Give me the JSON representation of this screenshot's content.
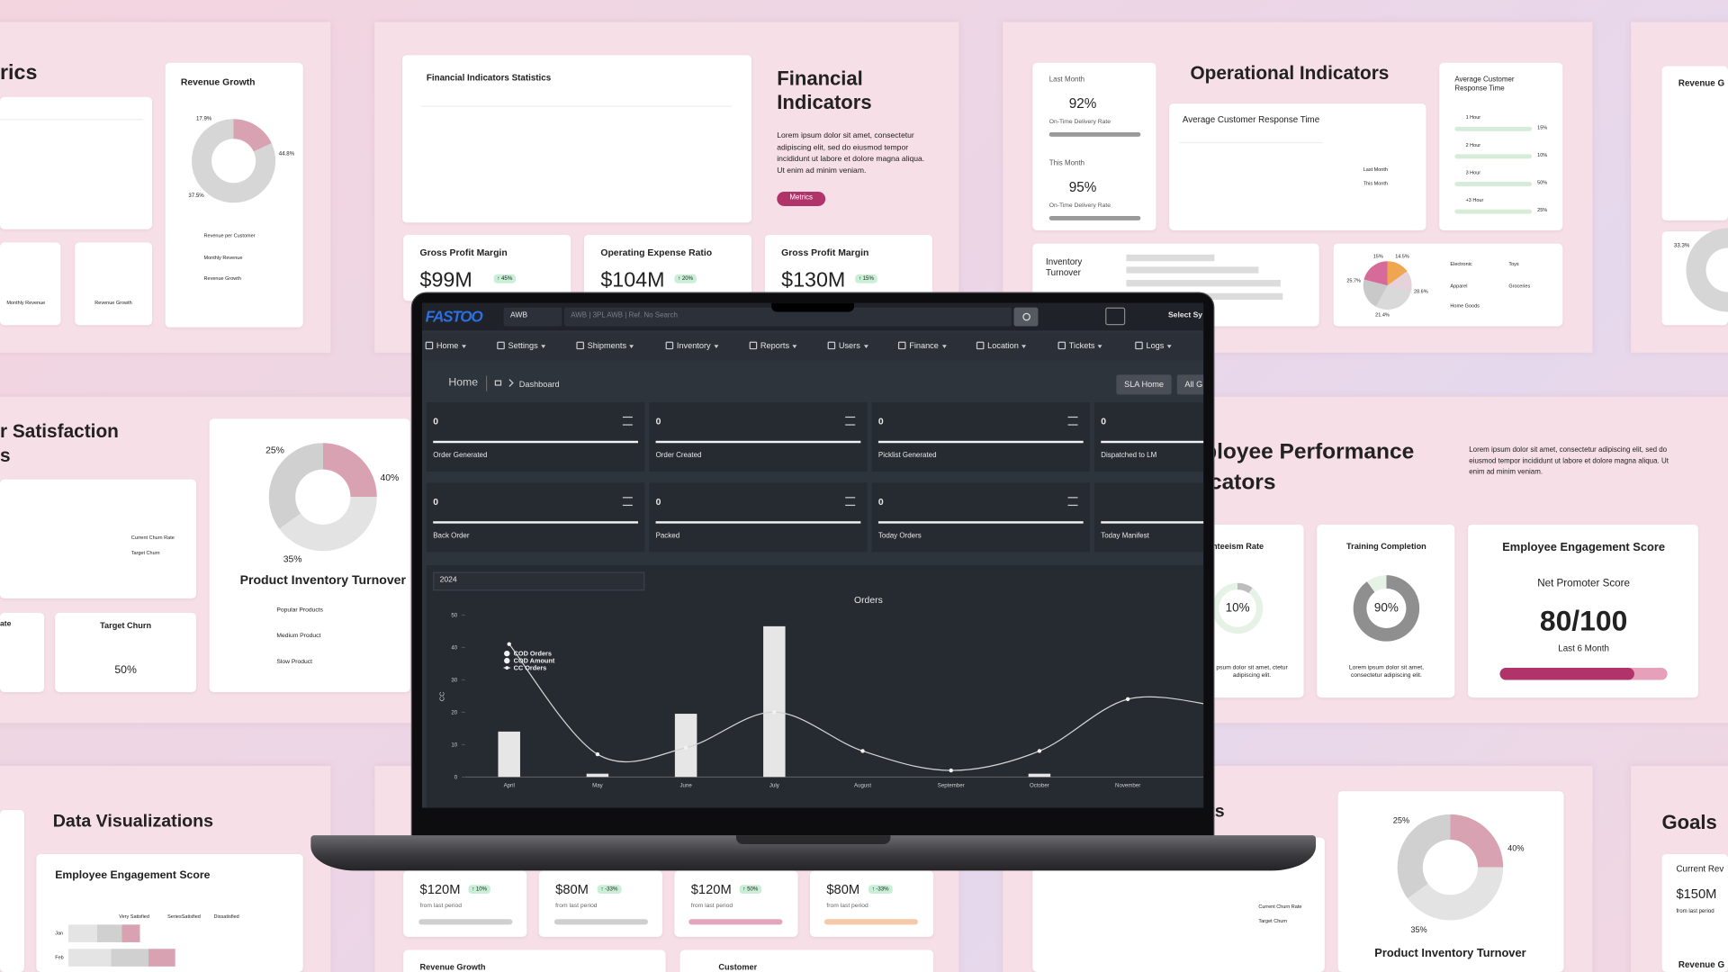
{
  "background": {
    "top_left": {
      "title": "rics",
      "card_title": "Revenue Growth",
      "donut_labels": [
        "17.9%",
        "44.8%",
        "37.5%"
      ],
      "legend": [
        "Revenue per Customer",
        "Monthly Revenue",
        "Revenue Growth"
      ],
      "gauges": [
        "Monthly Revenue",
        "Revenue Growth"
      ]
    },
    "financial": {
      "chart_title": "Financial Indicators Statistics",
      "title": "Financial Indicators",
      "text": "Lorem ipsum dolor sit amet, consectetur adipiscing elit, sed do eiusmod tempor incididunt ut labore et dolore magna aliqua. Ut enim ad minim veniam.",
      "button": "Metrics",
      "kpis": [
        {
          "label": "Gross Profit Margin",
          "value": "$99M",
          "change": "↑ 45%"
        },
        {
          "label": "Operating Expense Ratio",
          "value": "$104M",
          "change": "↑ 20%"
        },
        {
          "label": "Gross Profit Margin",
          "value": "$130M",
          "change": "↑ 15%"
        }
      ]
    },
    "operational": {
      "title": "Operational Indicators",
      "last_month": "Last Month",
      "last_value": "92%",
      "rate_label": "On-Time Delivery Rate",
      "this_month": "This Month",
      "this_value": "95%",
      "this_rate_label": "On-Time Delivery Rate",
      "chart_title": "Average Customer Response Time",
      "chart_legend": [
        "Last Month",
        "This Month"
      ],
      "response_title": "Average Customer Response Time",
      "response": [
        {
          "label": "1 Hour",
          "value": "15%"
        },
        {
          "label": "2 Hour",
          "value": "10%"
        },
        {
          "label": "3 Hour",
          "value": "50%"
        },
        {
          "label": "+3 Hour",
          "value": "25%"
        }
      ],
      "inventory": "Inventory Turnover",
      "pie_labels": [
        "15%",
        "14.5%",
        "25.7%",
        "28.6%",
        "21.4%"
      ],
      "pie_legend": [
        "Electronic",
        "Toys",
        "Apparel",
        "Groceries",
        "Home Goods"
      ]
    },
    "far_right_top": {
      "title": "Revenue G",
      "label": "33.3%"
    },
    "satisfaction": {
      "title_lines": [
        "r Satisfaction",
        "s"
      ],
      "legend": [
        "Current Churn Rate",
        "Target Churn"
      ],
      "card_a": "ate",
      "card_b": "Target Churn",
      "gauge": "50%"
    },
    "inventory_left": {
      "labels": [
        "25%",
        "40%",
        "35%"
      ],
      "title": "Product Inventory Turnover",
      "legend": [
        "Popular Products",
        "Medium Product",
        "Slow Product"
      ]
    },
    "employee": {
      "title_lines": [
        "ployee Performance",
        "icators"
      ],
      "text": "Lorem ipsum dolor sit amet, consectetur adipiscing elit, sed do eiusmod tempor incididunt ut labore et dolore magna aliqua. Ut enim ad minim veniam.",
      "absent_title": "nteeism Rate",
      "absent_value": "10%",
      "absent_text": "psum dolor sit amet, ctetur adipiscing elit.",
      "training_title": "Training Completion",
      "training_value": "90%",
      "training_text": "Lorem ipsum dolor sit amet, consectetur adipiscing elit.",
      "engagement_title": "Employee Engagement Score",
      "nps_label": "Net Promoter Score",
      "nps": "80/100",
      "period": "Last 6 Month"
    },
    "data_viz": {
      "title": "Data Visualizations",
      "card_title": "Employee Engagement Score",
      "legend": [
        "Very Satisfied",
        "SeriesSatisfied",
        "Dissatisfied"
      ],
      "rows": [
        "Jan",
        "Feb"
      ]
    },
    "bottom_kpis": [
      {
        "value": "$120M",
        "change": "↑ 10%",
        "note": "from last period"
      },
      {
        "value": "$80M",
        "change": "↑ -33%",
        "note": "from last period"
      },
      {
        "value": "$120M",
        "change": "↑ 50%",
        "note": "from last period"
      },
      {
        "value": "$80M",
        "change": "↑ -33%",
        "note": "from last period"
      }
    ],
    "bottom_cards": [
      "Revenue Growth",
      "Customer"
    ],
    "bottom_right": {
      "title": "ts",
      "legend": [
        "Current Churn Rate",
        "Target Churn"
      ],
      "labels": [
        "25%",
        "40%",
        "35%"
      ],
      "card_title": "Product Inventory Turnover"
    },
    "goals": {
      "title": "Goals",
      "label": "Current Rev",
      "value": "$150M",
      "note": "from last period",
      "card": "Revenue G"
    }
  },
  "dashboard": {
    "logo": "FASTOO",
    "awb": "AWB",
    "search_placeholder": "AWB | 3PL AWB | Ref. No  Search",
    "select": "Select Sy",
    "menu": [
      "Home",
      "Settings",
      "Shipments",
      "Inventory",
      "Reports",
      "Users",
      "Finance",
      "Location",
      "Tickets",
      "Logs"
    ],
    "breadcrumb": {
      "root": "Home",
      "current": "Dashboard"
    },
    "buttons": [
      "SLA Home",
      "All G"
    ],
    "cards": [
      {
        "value": 0,
        "label": "Order Generated"
      },
      {
        "value": 0,
        "label": "Order Created"
      },
      {
        "value": 0,
        "label": "Picklist Generated"
      },
      {
        "value": 0,
        "label": "Dispatched to LM"
      },
      {
        "value": 0,
        "label": "Back Order"
      },
      {
        "value": 0,
        "label": "Packed"
      },
      {
        "value": 0,
        "label": "Today Orders"
      },
      {
        "label": "Today Manifest"
      }
    ],
    "year": "2024",
    "orders_chart": {
      "type": "bar",
      "title": "Orders",
      "y_label": "CC",
      "categories": [
        "April",
        "May",
        "June",
        "July",
        "August",
        "September",
        "October",
        "November",
        null
      ],
      "series": [
        {
          "name": "COD Orders",
          "type": "bar",
          "color": "#e6e6e6",
          "values": [
            14,
            1,
            19.5,
            46.5,
            0,
            0,
            1,
            0,
            null
          ]
        },
        {
          "name": "COD Amount",
          "type": "bar",
          "color": "#bdbdbd",
          "values": [
            0,
            0,
            0,
            0,
            0,
            0,
            0,
            0,
            null
          ]
        },
        {
          "name": "CC Orders",
          "type": "line",
          "color": "#d4d4d4",
          "values": [
            41,
            7,
            9,
            20,
            8,
            2,
            8,
            24,
            22
          ]
        }
      ],
      "ylim": [
        0,
        50
      ],
      "yticks": [
        0,
        10,
        20,
        30,
        40,
        50
      ]
    }
  }
}
